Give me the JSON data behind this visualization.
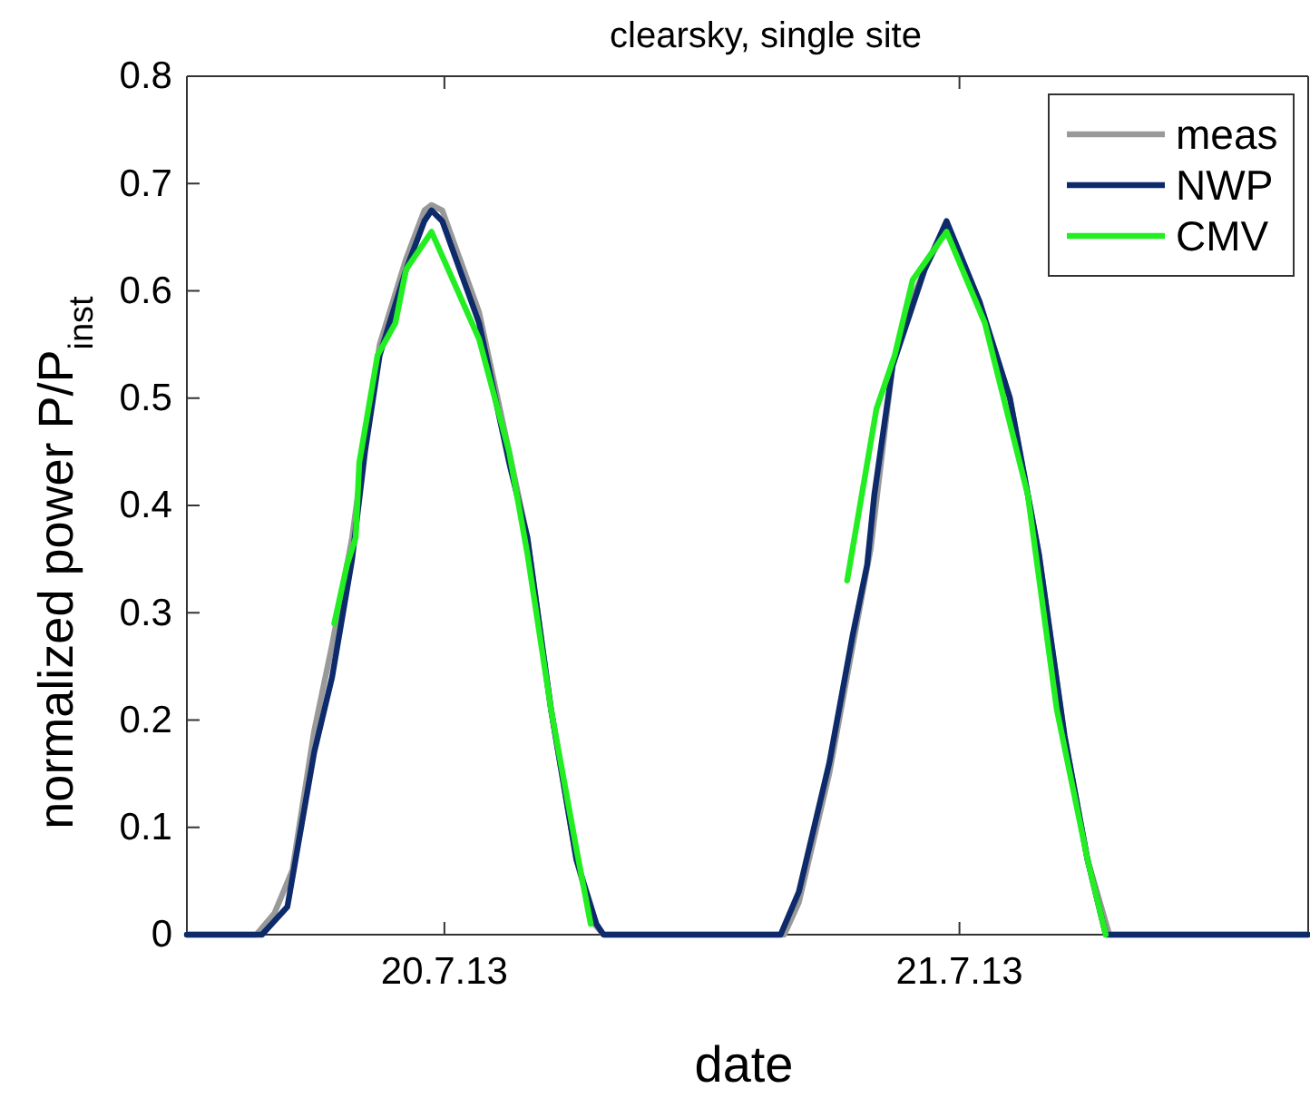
{
  "chart_data": {
    "type": "line",
    "title": "clearsky, single site",
    "xlabel": "date",
    "ylabel": "normalized power P/P$_{inst}$",
    "xlim": [
      "--07-19T12:00",
      "--07-21T16:15"
    ],
    "xticks": [
      {
        "value": "--07-20",
        "label": "20.7.13"
      },
      {
        "value": "--07-21",
        "label": "21.7.13"
      }
    ],
    "ylim": [
      0,
      0.8
    ],
    "yticks": [
      0,
      0.1,
      0.2,
      0.3,
      0.4,
      0.5,
      0.6,
      0.7,
      0.8
    ],
    "grid": false,
    "legend": "top right",
    "marker": "none",
    "line_style": "solid",
    "series": [
      {
        "name": "meas",
        "color": "#999999",
        "x": [
          "--07-19T12:00",
          "--07-19T15:14",
          "--07-19T16:05",
          "--07-19T16:55",
          "--07-19T17:56",
          "--07-19T18:46",
          "--07-19T19:42",
          "--07-19T20:18",
          "--07-19T20:59",
          "--07-19T22:13",
          "--07-19T23:04",
          "--07-19T23:24",
          "--07-19T23:54",
          "--07-20T01:37",
          "--07-20T03:01",
          "--07-20T03:52",
          "--07-20T04:58",
          "--07-20T06:09",
          "--07-20T06:59",
          "--07-20T07:25",
          "--07-20T15:50",
          "--07-20T16:31",
          "--07-20T17:56",
          "--07-20T19:02",
          "--07-20T19:52",
          "--07-20T20:53",
          "--07-20T21:33",
          "--07-20T22:23",
          "--07-20T23:24",
          "--07-21T00:56",
          "--07-21T02:21",
          "--07-21T03:42",
          "--07-21T04:54",
          "--07-21T05:58",
          "--07-21T06:59",
          "--07-21T16:15"
        ],
        "values": [
          0,
          0,
          0.02,
          0.06,
          0.19,
          0.27,
          0.37,
          0.46,
          0.55,
          0.63,
          0.675,
          0.68,
          0.675,
          0.58,
          0.45,
          0.37,
          0.21,
          0.07,
          0.01,
          0,
          0,
          0.03,
          0.15,
          0.27,
          0.36,
          0.53,
          0.58,
          0.62,
          0.66,
          0.59,
          0.5,
          0.355,
          0.185,
          0.07,
          0,
          0
        ]
      },
      {
        "name": "NWP",
        "color": "#0d2a6b",
        "x": [
          "--07-19T12:00",
          "--07-19T15:14",
          "--07-19T15:30",
          "--07-19T16:41",
          "--07-19T17:56",
          "--07-19T18:46",
          "--07-19T19:42",
          "--07-19T20:18",
          "--07-19T20:59",
          "--07-19T22:13",
          "--07-19T23:04",
          "--07-19T23:24",
          "--07-19T23:54",
          "--07-20T01:37",
          "--07-20T03:01",
          "--07-20T03:52",
          "--07-20T04:58",
          "--07-20T06:09",
          "--07-20T07:05",
          "--07-20T07:25",
          "--07-20T15:40",
          "--07-20T16:31",
          "--07-20T17:56",
          "--07-20T19:02",
          "--07-20T19:42",
          "--07-20T20:02",
          "--07-20T20:53",
          "--07-20T21:33",
          "--07-20T22:23",
          "--07-20T23:24",
          "--07-21T00:56",
          "--07-21T02:21",
          "--07-21T03:42",
          "--07-21T04:54",
          "--07-21T05:58",
          "--07-21T06:49",
          "--07-21T16:15"
        ],
        "values": [
          0,
          0,
          0,
          0.026,
          0.17,
          0.24,
          0.35,
          0.45,
          0.54,
          0.62,
          0.665,
          0.675,
          0.665,
          0.57,
          0.44,
          0.37,
          0.21,
          0.07,
          0.01,
          0,
          0,
          0.04,
          0.16,
          0.28,
          0.345,
          0.41,
          0.53,
          0.57,
          0.62,
          0.665,
          0.59,
          0.5,
          0.355,
          0.185,
          0.07,
          0,
          0
        ]
      },
      {
        "name": "CMV",
        "color": "#22ee22",
        "x": [
          "--07-19T18:52",
          "--07-19T19:28",
          "--07-19T19:52",
          "--07-19T20:02",
          "--07-19T20:53",
          "--07-19T21:43",
          "--07-19T22:13",
          "--07-19T23:24",
          "--07-20T01:37",
          "--07-20T03:01",
          "--07-20T03:52",
          "--07-20T04:58",
          "--07-20T06:09",
          "--07-20T06:49",
          "--07-20T12:00",
          "--07-20T18:46",
          "--07-20T20:08",
          "--07-20T20:59",
          "--07-20T21:49",
          "--07-20T23:24",
          "--07-21T01:11",
          "--07-21T03:11",
          "--07-21T04:32",
          "--07-21T05:58",
          "--07-21T06:49"
        ],
        "values": [
          0.29,
          0.345,
          0.37,
          0.44,
          0.54,
          0.57,
          0.62,
          0.655,
          0.555,
          0.45,
          0.355,
          0.21,
          0.08,
          0.01,
          null,
          0.33,
          0.49,
          0.54,
          0.61,
          0.655,
          0.57,
          0.41,
          0.21,
          0.07,
          0
        ]
      }
    ]
  }
}
